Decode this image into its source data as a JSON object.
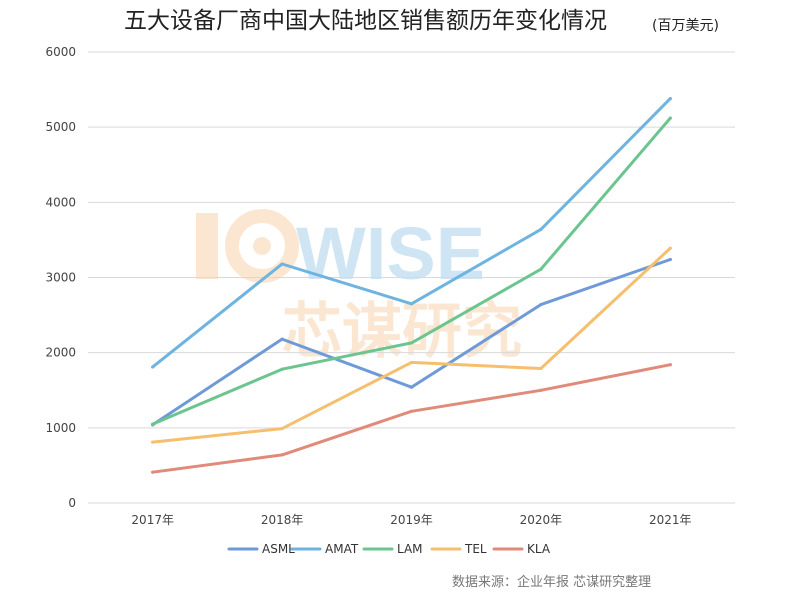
{
  "chart_data": {
    "type": "line",
    "title": "五大设备厂商中国大陆地区销售额历年变化情况",
    "title_unit": "(百万美元)",
    "categories": [
      "2017年",
      "2018年",
      "2019年",
      "2020年",
      "2021年"
    ],
    "ylim": [
      0,
      6000
    ],
    "yticks": [
      "0",
      "1000",
      "2000",
      "3000",
      "4000",
      "5000",
      "6000"
    ],
    "grid": true,
    "legend_position": "bottom",
    "series": [
      {
        "name": "ASML",
        "color": "#6f9ad8",
        "values": [
          1040,
          2180,
          1540,
          2640,
          3240
        ]
      },
      {
        "name": "AMAT",
        "color": "#6fb3e0",
        "values": [
          1810,
          3180,
          2650,
          3640,
          5380
        ]
      },
      {
        "name": "LAM",
        "color": "#6cc58f",
        "values": [
          1050,
          1780,
          2130,
          3110,
          5120
        ]
      },
      {
        "name": "TEL",
        "color": "#f5bf6e",
        "values": [
          810,
          990,
          1870,
          1790,
          3390
        ]
      },
      {
        "name": "KLA",
        "color": "#e08a7a",
        "values": [
          410,
          640,
          1220,
          1500,
          1840
        ]
      }
    ]
  },
  "watermark": {
    "logo": "ICWISE",
    "name": "芯谋研究"
  },
  "source": "数据来源：企业年报  芯谋研究整理"
}
